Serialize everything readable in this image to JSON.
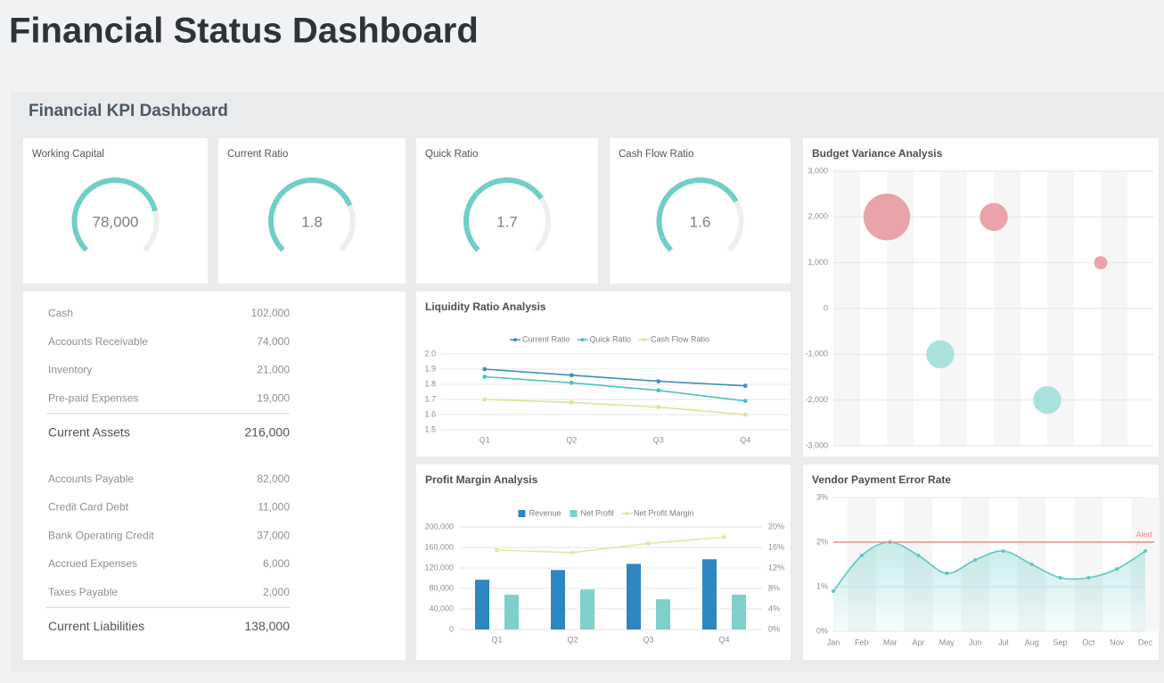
{
  "page_title": "Financial Status Dashboard",
  "panel_title": "Financial KPI Dashboard",
  "gauge_color": "#6fcfc6",
  "gauges": [
    {
      "label": "Working Capital",
      "value": 78000,
      "value_label": "78,000",
      "range": [
        0,
        100000
      ]
    },
    {
      "label": "Current Ratio",
      "value": 1.8,
      "range": [
        0,
        2.4
      ]
    },
    {
      "label": "Quick Ratio",
      "value": 1.7,
      "range": [
        0,
        2.4
      ]
    },
    {
      "label": "Cash Flow Ratio",
      "value": 1.6,
      "range": [
        0,
        2.2
      ]
    }
  ],
  "balance_sheet": {
    "sections": [
      {
        "rows": [
          [
            "Cash",
            "102,000"
          ],
          [
            "Accounts Receivable",
            "74,000"
          ],
          [
            "Inventory",
            "21,000"
          ],
          [
            "Pre-paid Expenses",
            "19,000"
          ]
        ],
        "total": [
          "Current Assets",
          "216,000"
        ]
      },
      {
        "rows": [
          [
            "Accounts Payable",
            "82,000"
          ],
          [
            "Credit Card Debt",
            "11,000"
          ],
          [
            "Bank Operating Credit",
            "37,000"
          ],
          [
            "Accrued Expenses",
            "6,000"
          ],
          [
            "Taxes Payable",
            "2,000"
          ]
        ],
        "total": [
          "Current Liabilities",
          "138,000"
        ]
      }
    ]
  },
  "chart_data": [
    {
      "type": "line",
      "title": "Liquidity Ratio Analysis",
      "categories": [
        "Q1",
        "Q2",
        "Q3",
        "Q4"
      ],
      "series": [
        {
          "name": "Current Ratio",
          "color": "#3d8fb8",
          "values": [
            1.9,
            1.86,
            1.82,
            1.79
          ]
        },
        {
          "name": "Quick Ratio",
          "color": "#4cc3be",
          "values": [
            1.85,
            1.81,
            1.76,
            1.69
          ]
        },
        {
          "name": "Cash Flow Ratio",
          "color": "#dfe29a",
          "values": [
            1.7,
            1.68,
            1.65,
            1.6
          ]
        }
      ],
      "ylim": [
        1.5,
        2.0
      ],
      "yticks": [
        1.5,
        1.6,
        1.7,
        1.8,
        1.9,
        {
          "value": 2,
          "label": "2.0"
        }
      ],
      "grid": true,
      "legend": "top"
    },
    {
      "type": "bar-line",
      "title": "Profit Margin Analysis",
      "categories": [
        "Q1",
        "Q2",
        "Q3",
        "Q4"
      ],
      "series": [
        {
          "name": "Revenue",
          "color": "#2e86c1",
          "values": [
            97000,
            116000,
            128000,
            137000
          ]
        },
        {
          "name": "Net Profit",
          "color": "#7fd0cb",
          "values": [
            68000,
            78000,
            59000,
            68000
          ]
        },
        {
          "name": "Net Profit Margin",
          "color": "#e3e6a8",
          "values": [
            15.5,
            15,
            16.8,
            18
          ],
          "axis": "y2"
        }
      ],
      "ylim": [
        0,
        200000
      ],
      "yticks": [
        0,
        {
          "value": 40000,
          "label": "40,000"
        },
        {
          "value": 80000,
          "label": "80,000"
        },
        {
          "value": 120000,
          "label": "120,000"
        },
        {
          "value": 160000,
          "label": "160,000"
        },
        {
          "value": 200000,
          "label": "200,000"
        }
      ],
      "y2lim": [
        0,
        20
      ],
      "y2ticks": [
        {
          "value": 0,
          "label": "0%"
        },
        {
          "value": 4,
          "label": "4%"
        },
        {
          "value": 8,
          "label": "8%"
        },
        {
          "value": 12,
          "label": "12%"
        },
        {
          "value": 16,
          "label": "16%"
        },
        {
          "value": 20,
          "label": "20%"
        }
      ],
      "grid": true,
      "legend": "top"
    },
    {
      "type": "bubble",
      "title": "Budget Variance Analysis",
      "x": [
        2,
        4,
        6,
        8,
        10
      ],
      "values": [
        2000,
        -1000,
        2000,
        -2000,
        1000
      ],
      "sizes": [
        50,
        18,
        18,
        18,
        4
      ],
      "colors": [
        "#eaa3a8",
        "#a9e2dd",
        "#eaa3a8",
        "#a9e2dd",
        "#eaa3a8"
      ],
      "xlim": [
        0,
        12
      ],
      "ylim": [
        -3000,
        3000
      ],
      "yticks": [
        {
          "value": -3000,
          "label": "-3,000"
        },
        {
          "value": -2000,
          "label": "-2,000"
        },
        {
          "value": -1000,
          "label": "-1,000"
        },
        0,
        {
          "value": 1000,
          "label": "1,000"
        },
        {
          "value": 2000,
          "label": "2,000"
        },
        {
          "value": 3000,
          "label": "3,000"
        }
      ],
      "grid": true
    },
    {
      "type": "area",
      "title": "Vendor Payment Error Rate",
      "categories": [
        "Jan",
        "Feb",
        "Mar",
        "Apr",
        "May",
        "Jun",
        "Jul",
        "Aug",
        "Sep",
        "Oct",
        "Nov",
        "Dec"
      ],
      "values": [
        0.9,
        1.7,
        2.0,
        1.7,
        1.3,
        1.6,
        1.8,
        1.5,
        1.2,
        1.2,
        1.4,
        1.8
      ],
      "color": "#5cc8c4",
      "ylim": [
        0,
        3
      ],
      "yticks": [
        {
          "value": 0,
          "label": "0%"
        },
        {
          "value": 1,
          "label": "1%"
        },
        {
          "value": 2,
          "label": "2%"
        },
        {
          "value": 3,
          "label": "3%"
        }
      ],
      "grid": true,
      "threshold": {
        "value": 2,
        "label": "Alert",
        "color": "#f08a8a"
      }
    }
  ]
}
